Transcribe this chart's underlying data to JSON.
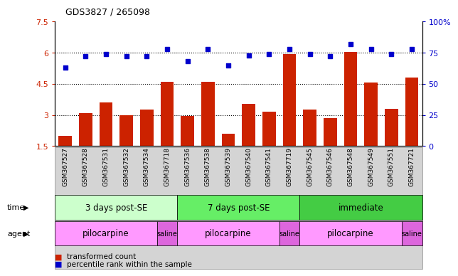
{
  "title": "GDS3827 / 265098",
  "samples": [
    "GSM367527",
    "GSM367528",
    "GSM367531",
    "GSM367532",
    "GSM367534",
    "GSM367718",
    "GSM367536",
    "GSM367538",
    "GSM367539",
    "GSM367540",
    "GSM367541",
    "GSM367719",
    "GSM367545",
    "GSM367546",
    "GSM367548",
    "GSM367549",
    "GSM367551",
    "GSM367721"
  ],
  "bar_values": [
    2.0,
    3.1,
    3.6,
    3.0,
    3.25,
    4.6,
    2.95,
    4.6,
    2.1,
    3.55,
    3.15,
    5.95,
    3.25,
    2.85,
    6.05,
    4.55,
    3.3,
    4.8
  ],
  "dot_values": [
    63,
    72,
    74,
    72,
    72,
    78,
    68,
    78,
    65,
    73,
    74,
    78,
    74,
    72,
    82,
    78,
    74,
    78
  ],
  "bar_color": "#cc2200",
  "dot_color": "#0000cc",
  "ylim_left": [
    1.5,
    7.5
  ],
  "ylim_right": [
    0,
    100
  ],
  "yticks_left": [
    1.5,
    3.0,
    4.5,
    6.0,
    7.5
  ],
  "yticks_right": [
    0,
    25,
    50,
    75,
    100
  ],
  "ytick_labels_left": [
    "1.5",
    "3",
    "4.5",
    "6",
    "7.5"
  ],
  "ytick_labels_right": [
    "0",
    "25",
    "50",
    "75",
    "100%"
  ],
  "time_groups": [
    {
      "label": "3 days post-SE",
      "start": 0,
      "end": 6,
      "color": "#ccffcc"
    },
    {
      "label": "7 days post-SE",
      "start": 6,
      "end": 12,
      "color": "#66ee66"
    },
    {
      "label": "immediate",
      "start": 12,
      "end": 18,
      "color": "#44cc44"
    }
  ],
  "agent_groups": [
    {
      "label": "pilocarpine",
      "start": 0,
      "end": 5,
      "color": "#ff99ff"
    },
    {
      "label": "saline",
      "start": 5,
      "end": 6,
      "color": "#dd66dd"
    },
    {
      "label": "pilocarpine",
      "start": 6,
      "end": 11,
      "color": "#ff99ff"
    },
    {
      "label": "saline",
      "start": 11,
      "end": 12,
      "color": "#dd66dd"
    },
    {
      "label": "pilocarpine",
      "start": 12,
      "end": 17,
      "color": "#ff99ff"
    },
    {
      "label": "saline",
      "start": 17,
      "end": 18,
      "color": "#dd66dd"
    }
  ],
  "legend_bar_label": "transformed count",
  "legend_dot_label": "percentile rank within the sample",
  "time_label": "time",
  "agent_label": "agent",
  "bg_color": "#ffffff",
  "plot_bg_color": "#ffffff",
  "tick_area_bg": "#d4d4d4"
}
